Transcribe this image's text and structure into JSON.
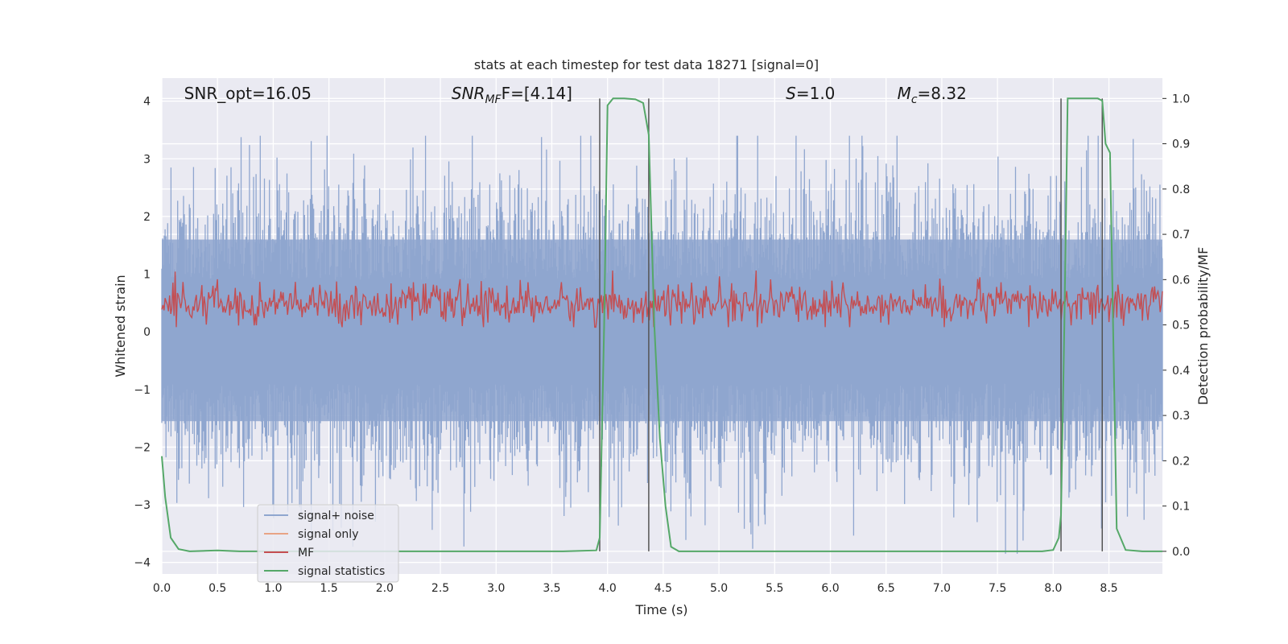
{
  "chart_data": {
    "type": "line",
    "title": "stats at each timestep for test data 18271 [signal=0]",
    "xlabel": "Time (s)",
    "ylabel": "Whitened strain",
    "ylabel_right": "Detection probability/MF",
    "xlim": [
      0.0,
      8.98
    ],
    "ylim": [
      -4.2,
      4.4
    ],
    "ylim_right": [
      -0.05,
      1.045
    ],
    "xticks": [
      "0.0",
      "0.5",
      "1.0",
      "1.5",
      "2.0",
      "2.5",
      "3.0",
      "3.5",
      "4.0",
      "4.5",
      "5.0",
      "5.5",
      "6.0",
      "6.5",
      "7.0",
      "7.5",
      "8.0",
      "8.5"
    ],
    "yticks_left": [
      "4",
      "3",
      "2",
      "1",
      "0",
      "−1",
      "−2",
      "−3",
      "−4"
    ],
    "yticks_right": [
      "1.0",
      "0.9",
      "0.8",
      "0.7",
      "0.6",
      "0.5",
      "0.4",
      "0.3",
      "0.2",
      "0.1",
      "0.0"
    ],
    "grid": true,
    "legend_position": "lower-left",
    "annotations": [
      {
        "text": "SNR_opt=16.05",
        "x": 0.2
      },
      {
        "main": "SNR",
        "sub": "MF",
        "rest": "F=[4.14]",
        "x": 2.6
      },
      {
        "main": "S",
        "rest": "=1.0",
        "x": 5.6
      },
      {
        "main": "M",
        "sub": "c",
        "rest": "=8.32",
        "x": 6.6
      }
    ],
    "vertical_lines_x": [
      3.93,
      4.37,
      8.07,
      8.44
    ],
    "series": [
      {
        "name": "signal+ noise",
        "color": "#8fa6cf",
        "axis": "left",
        "description": "noisy whitened strain, approx. range -3.5 to 3.4 with spikes"
      },
      {
        "name": "signal only",
        "color": "#e8a485",
        "axis": "left",
        "values": []
      },
      {
        "name": "MF",
        "color": "#c44e52",
        "axis": "right",
        "description": "matched-filter output oscillating roughly 0.50 to 0.60"
      },
      {
        "name": "signal statistics",
        "color": "#55a868",
        "axis": "right",
        "x": [
          0.0,
          0.03,
          0.08,
          0.15,
          0.25,
          0.5,
          0.7,
          1.0,
          2.0,
          3.0,
          3.6,
          3.9,
          3.93,
          3.97,
          4.0,
          4.05,
          4.15,
          4.25,
          4.32,
          4.37,
          4.42,
          4.47,
          4.52,
          4.57,
          4.64,
          5.0,
          6.0,
          7.0,
          7.9,
          8.0,
          8.05,
          8.07,
          8.1,
          8.13,
          8.2,
          8.3,
          8.4,
          8.44,
          8.47,
          8.51,
          8.57,
          8.65,
          8.8,
          8.98
        ],
        "y": [
          0.21,
          0.12,
          0.03,
          0.005,
          0.0,
          0.002,
          0.0,
          0.0,
          0.0,
          0.0,
          0.0,
          0.002,
          0.03,
          0.5,
          0.985,
          1.0,
          1.0,
          0.998,
          0.99,
          0.92,
          0.5,
          0.25,
          0.1,
          0.01,
          0.0,
          0.0,
          0.0,
          0.0,
          0.0,
          0.003,
          0.03,
          0.08,
          0.5,
          1.0,
          1.0,
          1.0,
          1.0,
          0.995,
          0.9,
          0.88,
          0.05,
          0.003,
          0.0,
          0.0
        ]
      }
    ]
  }
}
